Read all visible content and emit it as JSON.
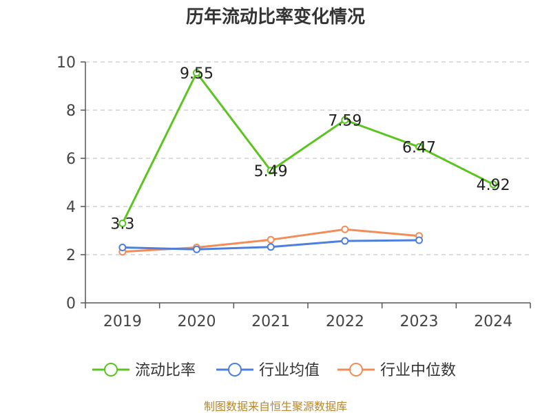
{
  "chart_data": {
    "type": "line",
    "title": "历年流动比率变化情况",
    "categories": [
      "2019",
      "2020",
      "2021",
      "2022",
      "2023",
      "2024"
    ],
    "series": [
      {
        "name": "流动比率",
        "color": "#5cc421",
        "values": [
          3.3,
          9.55,
          5.49,
          7.59,
          6.47,
          4.92
        ],
        "data_labels": [
          "3.3",
          "9.55",
          "5.49",
          "7.59",
          "6.47",
          "4.92"
        ]
      },
      {
        "name": "行业均值",
        "color": "#4d7fdc",
        "values": [
          2.3,
          2.22,
          2.32,
          2.57,
          2.6,
          null
        ]
      },
      {
        "name": "行业中位数",
        "color": "#f28d5a",
        "values": [
          2.12,
          2.3,
          2.62,
          3.05,
          2.78,
          null
        ]
      }
    ],
    "y_ticks": [
      "0",
      "2",
      "4",
      "6",
      "8",
      "10"
    ],
    "ylim": [
      0,
      10
    ],
    "grid": true,
    "legend_position": "bottom"
  },
  "source_text": "制图数据来自恒生聚源数据库"
}
